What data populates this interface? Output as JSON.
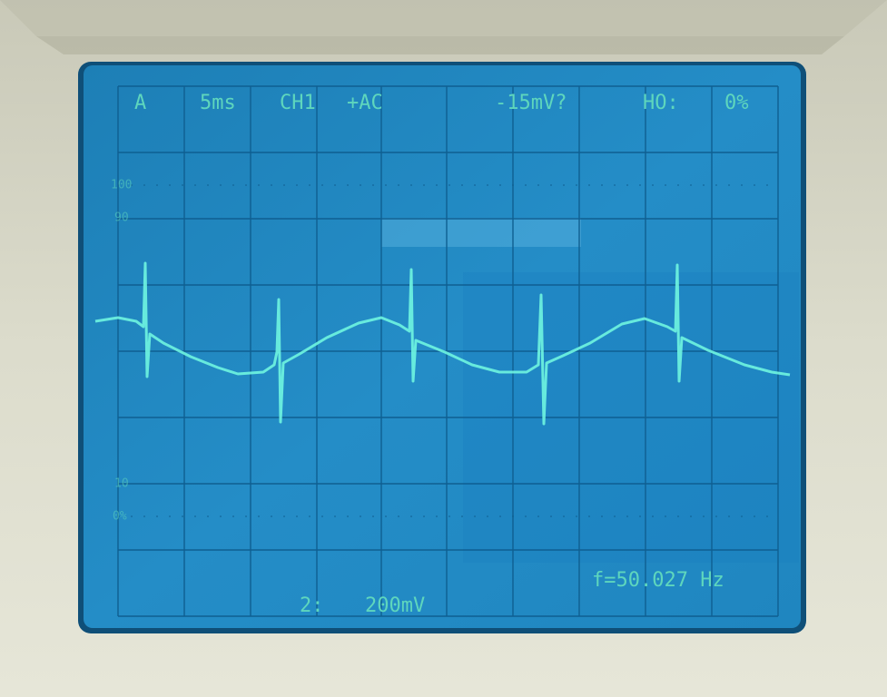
{
  "screen": {
    "top": {
      "trigger": "A",
      "timebase": "5ms",
      "channel": "CH1",
      "coupling": "+AC",
      "level": "-15mV?",
      "holdoff_label": "HO:",
      "holdoff": "0%"
    },
    "graticule": {
      "label_100": "100",
      "label_90": "90",
      "label_10": "10",
      "label_0": "0%"
    },
    "bottom": {
      "channel": "2:",
      "scale": "200mV",
      "frequency": "f=50.027 Hz"
    }
  }
}
